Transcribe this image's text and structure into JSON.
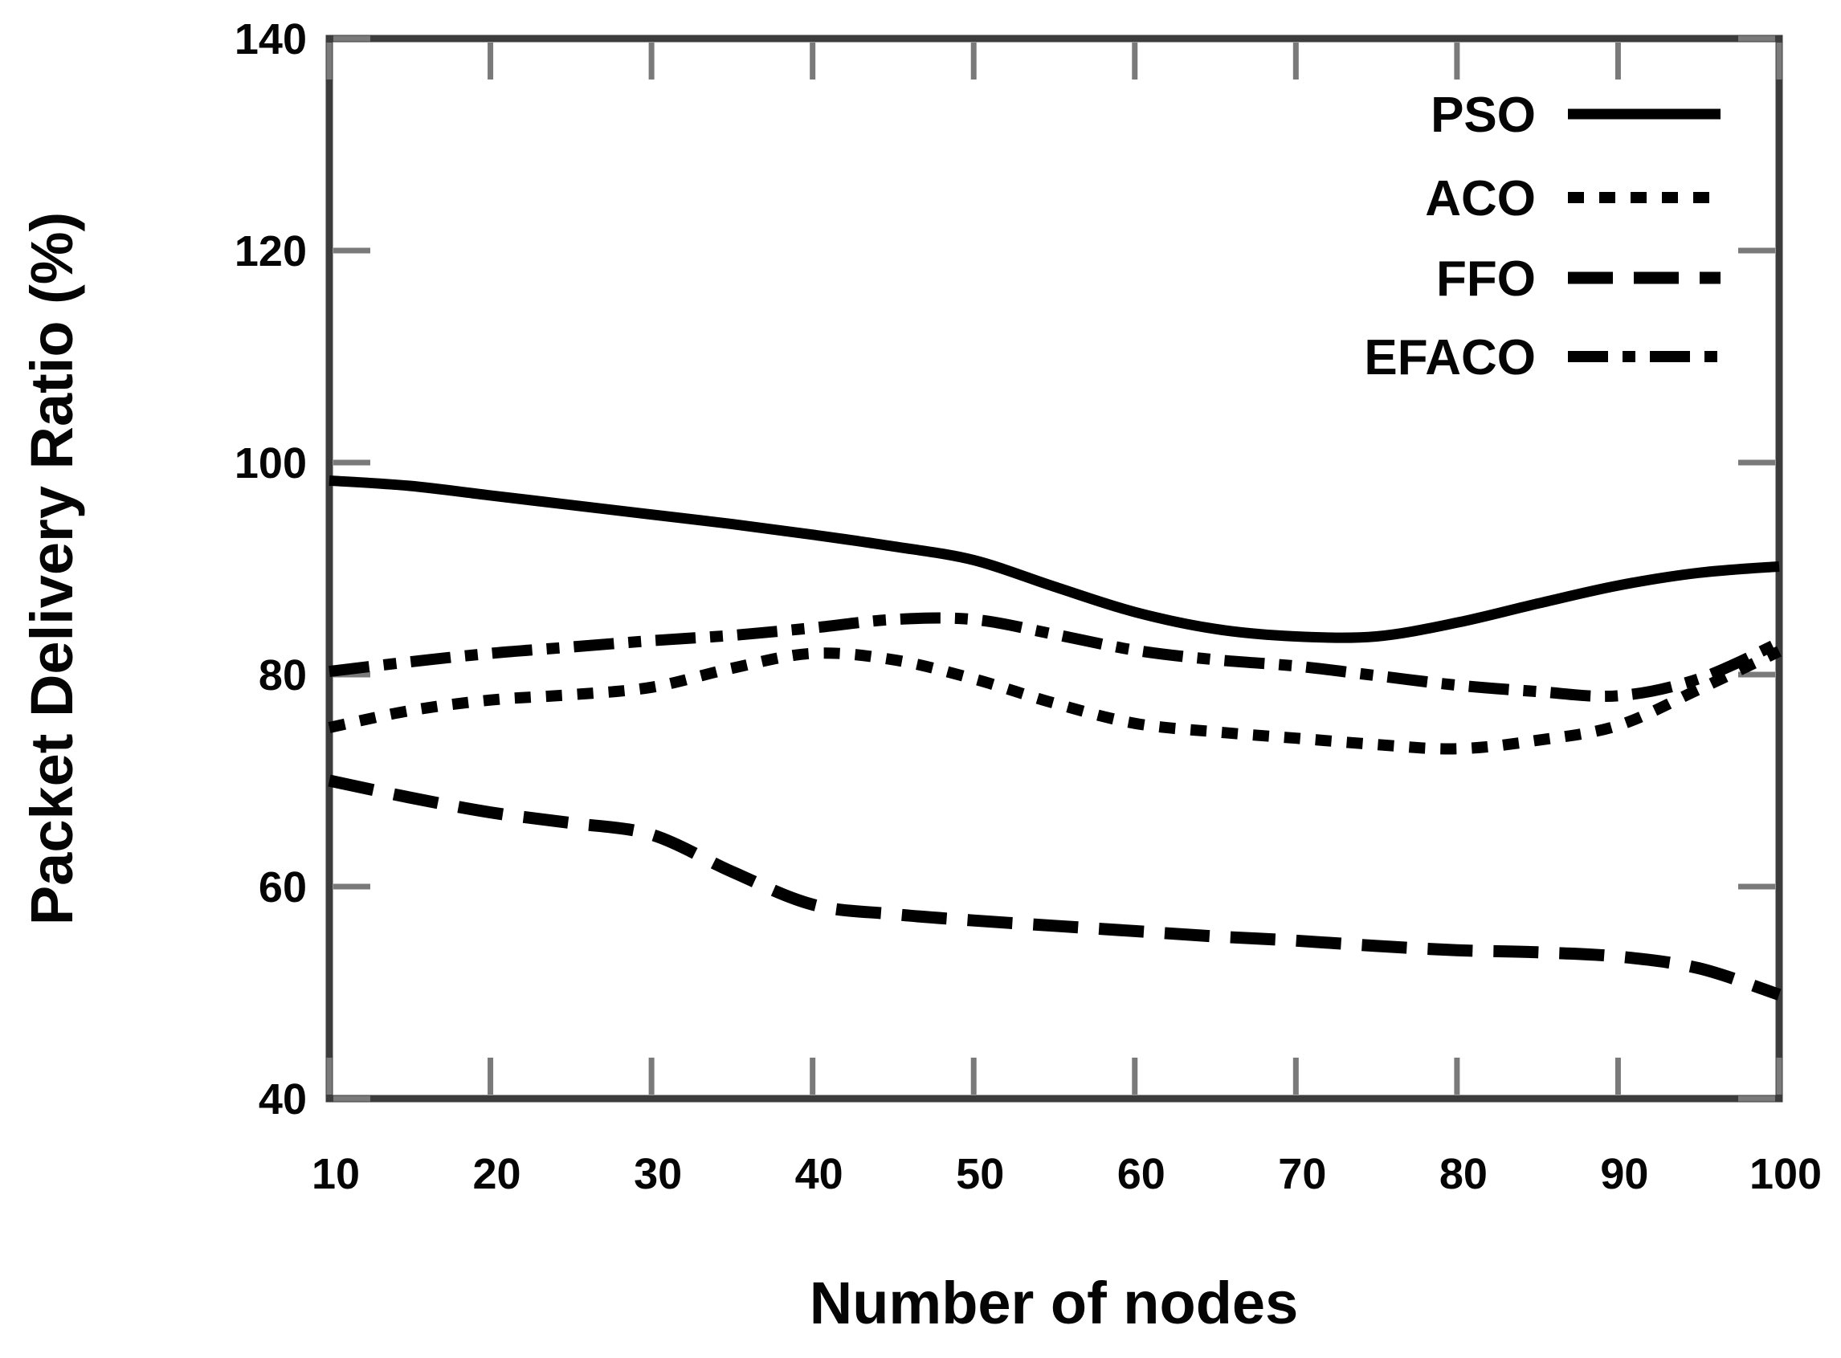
{
  "figure": {
    "background": "#ffffff",
    "y_axis": {
      "title": "Packet Delivery Ratio (%)",
      "tick_labels": [
        "40",
        "60",
        "80",
        "100",
        "120",
        "140"
      ],
      "range": [
        40,
        140
      ]
    },
    "x_axis": {
      "title": "Number of nodes",
      "tick_labels": [
        "10",
        "20",
        "30",
        "40",
        "50",
        "60",
        "70",
        "80",
        "90",
        "100"
      ],
      "range": [
        10,
        100
      ]
    },
    "legend": {
      "position": "top-right",
      "entries": [
        {
          "label": "PSO",
          "line_style": "solid"
        },
        {
          "label": "ACO",
          "line_style": "dotted"
        },
        {
          "label": "FFO",
          "line_style": "dashed"
        },
        {
          "label": "EFACO",
          "line_style": "dashdot"
        }
      ]
    }
  },
  "chart_data": {
    "type": "line",
    "title": "",
    "xlabel": "Number of nodes",
    "ylabel": "Packet Delivery Ratio (%)",
    "xlim": [
      10,
      100
    ],
    "ylim": [
      40,
      140
    ],
    "x_ticks": [
      10,
      20,
      30,
      40,
      50,
      60,
      70,
      80,
      90,
      100
    ],
    "y_ticks": [
      40,
      60,
      80,
      100,
      120,
      140
    ],
    "grid": false,
    "legend_position": "top-right",
    "x": [
      10,
      15,
      20,
      25,
      30,
      35,
      40,
      45,
      50,
      55,
      60,
      65,
      70,
      75,
      80,
      85,
      90,
      95,
      100
    ],
    "series": [
      {
        "name": "PSO",
        "style": "solid",
        "values": [
          98.3,
          97.8,
          96.9,
          96.0,
          95.1,
          94.2,
          93.2,
          92.1,
          90.8,
          88.3,
          85.9,
          84.3,
          83.6,
          83.6,
          84.9,
          86.7,
          88.4,
          89.6,
          90.2
        ]
      },
      {
        "name": "ACO",
        "style": "dotted",
        "values": [
          75.0,
          76.6,
          77.6,
          78.1,
          78.8,
          80.6,
          82.0,
          81.4,
          79.6,
          77.3,
          75.4,
          74.6,
          74.0,
          73.4,
          73.0,
          73.8,
          75.2,
          78.6,
          82.2
        ]
      },
      {
        "name": "FFO",
        "style": "dashed",
        "values": [
          70.0,
          68.4,
          67.0,
          66.0,
          64.9,
          61.4,
          58.3,
          57.4,
          56.8,
          56.3,
          55.8,
          55.3,
          54.9,
          54.4,
          54.0,
          53.8,
          53.4,
          52.3,
          49.8
        ]
      },
      {
        "name": "EFACO",
        "style": "dashdot",
        "values": [
          80.3,
          81.2,
          82.0,
          82.6,
          83.2,
          83.7,
          84.4,
          85.2,
          85.2,
          83.8,
          82.3,
          81.4,
          80.8,
          79.9,
          79.0,
          78.4,
          78.0,
          79.6,
          83.0
        ]
      }
    ]
  },
  "colors": {
    "curve": "#000000",
    "axis": "#3c3c3c",
    "tick": "#7a7a7a",
    "text": "#050505",
    "background": "#ffffff"
  }
}
